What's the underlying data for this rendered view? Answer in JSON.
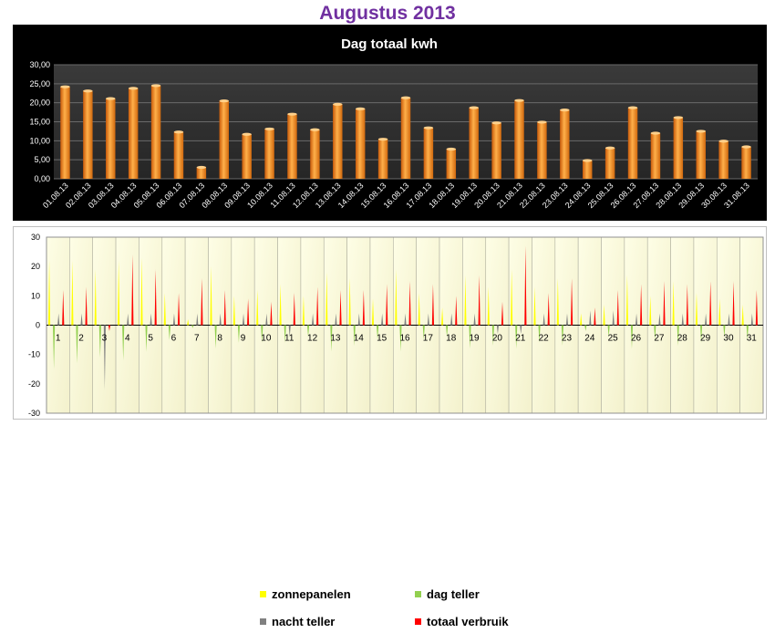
{
  "page_title": "Augustus 2013",
  "chart_data": [
    {
      "type": "bar",
      "title": "Dag totaal kwh",
      "ylim": [
        0,
        30
      ],
      "yticks": [
        "0,00",
        "5,00",
        "10,00",
        "15,00",
        "20,00",
        "25,00",
        "30,00"
      ],
      "categories": [
        "01.08.13",
        "02.08.13",
        "03.08.13",
        "04.08.13",
        "05.08.13",
        "06.08.13",
        "07.08.13",
        "08.08.13",
        "09.08.13",
        "10.08.13",
        "11.08.13",
        "12.08.13",
        "13.08.13",
        "14.08.13",
        "15.08.13",
        "16.08.13",
        "17.08.13",
        "18.08.13",
        "19.08.13",
        "20.08.13",
        "21.08.13",
        "22.08.13",
        "23.08.13",
        "24.08.13",
        "25.08.13",
        "26.08.13",
        "27.08.13",
        "28.08.13",
        "29.08.13",
        "30.08.13",
        "31.08.13"
      ],
      "values": [
        24.2,
        23.1,
        21.1,
        23.8,
        24.5,
        12.3,
        3.0,
        20.5,
        11.7,
        13.1,
        17.0,
        12.9,
        19.6,
        18.4,
        10.4,
        21.3,
        13.4,
        7.8,
        18.7,
        14.7,
        20.6,
        14.9,
        18.1,
        4.8,
        8.1,
        18.7,
        12.0,
        16.1,
        12.5,
        9.9,
        8.4
      ],
      "color": "#f7941d"
    },
    {
      "type": "bar",
      "ylim": [
        -30,
        30
      ],
      "yticks": [
        "-30",
        "-20",
        "-10",
        "0",
        "10",
        "20",
        "30"
      ],
      "categories": [
        "1",
        "2",
        "3",
        "4",
        "5",
        "6",
        "7",
        "8",
        "9",
        "10",
        "11",
        "12",
        "13",
        "14",
        "15",
        "16",
        "17",
        "18",
        "19",
        "20",
        "21",
        "22",
        "23",
        "24",
        "25",
        "26",
        "27",
        "28",
        "29",
        "30",
        "31"
      ],
      "legend_position": "bottom-center",
      "series": [
        {
          "name": "zonnepanelen",
          "color": "#ffff00",
          "values": [
            22,
            22,
            19,
            22,
            23,
            11,
            2,
            20,
            10,
            12,
            14,
            10,
            18,
            16,
            9,
            19,
            11,
            6,
            17,
            13,
            19,
            13,
            16,
            4,
            7,
            17,
            10,
            15,
            11,
            9,
            7
          ]
        },
        {
          "name": "dag teller",
          "color": "#92d050",
          "values": [
            -15,
            -13,
            -11,
            -12,
            -9,
            -5,
            -1,
            -8,
            -6,
            -6,
            -6,
            -4,
            -9,
            -7,
            -5,
            -9,
            -5,
            -4,
            -8,
            -7,
            -8,
            -6,
            -7,
            -2,
            -4,
            -8,
            -5,
            -7,
            -6,
            -4,
            -5
          ]
        },
        {
          "name": "nacht teller",
          "color": "#808080",
          "values": [
            4,
            4,
            -22,
            4,
            4,
            4,
            4,
            4,
            4,
            4,
            -4,
            4,
            4,
            4,
            4,
            4,
            4,
            4,
            4,
            -3,
            -3,
            4,
            4,
            5,
            5,
            4,
            4,
            4,
            4,
            4,
            4
          ]
        },
        {
          "name": "totaal verbruik",
          "color": "#ff0000",
          "values": [
            12,
            13,
            -2,
            24,
            19,
            11,
            16,
            12,
            9,
            8,
            11,
            13,
            12,
            12,
            14,
            15,
            14,
            10,
            17,
            8,
            27,
            11,
            16,
            6,
            12,
            14,
            15,
            14,
            15,
            15,
            12
          ]
        }
      ]
    }
  ]
}
